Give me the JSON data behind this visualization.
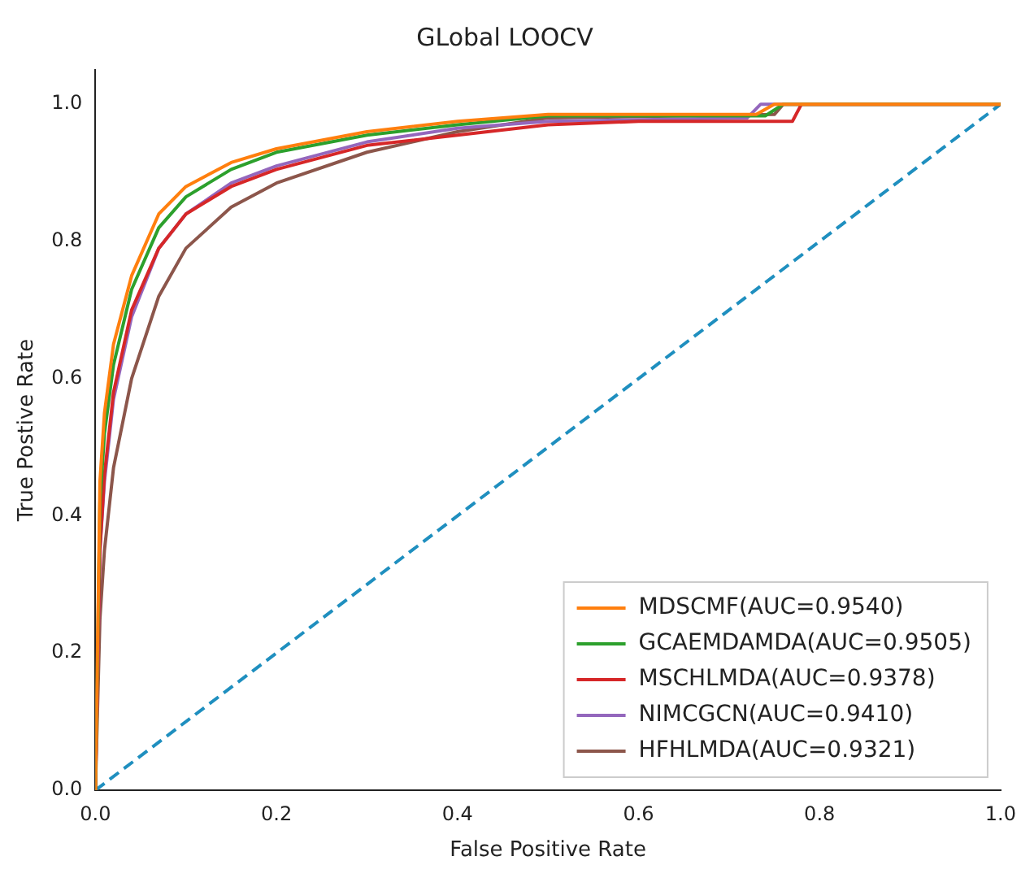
{
  "chart_data": {
    "type": "line",
    "title": "GLobal LOOCV",
    "xlabel": "False Positive Rate",
    "ylabel": "True Postive Rate",
    "xlim": [
      0,
      1
    ],
    "ylim": [
      0,
      1.05
    ],
    "xticks": [
      {
        "value": 0,
        "label": "0.0"
      },
      {
        "value": 0.2,
        "label": "0.2"
      },
      {
        "value": 0.4,
        "label": "0.4"
      },
      {
        "value": 0.6,
        "label": "0.6"
      },
      {
        "value": 0.8,
        "label": "0.8"
      },
      {
        "value": 1,
        "label": "1.0"
      }
    ],
    "yticks": [
      {
        "value": 0,
        "label": "0.0"
      },
      {
        "value": 0.2,
        "label": "0.2"
      },
      {
        "value": 0.4,
        "label": "0.4"
      },
      {
        "value": 0.6,
        "label": "0.6"
      },
      {
        "value": 0.8,
        "label": "0.8"
      },
      {
        "value": 1,
        "label": "1.0"
      }
    ],
    "grid": false,
    "legend": "bottom right",
    "marker": "none",
    "line_style": "solid",
    "series": [
      {
        "name": "MDSCMF(AUC=0.9540)",
        "color": "#ff7f0e",
        "x": [
          0,
          0.005,
          0.01,
          0.02,
          0.04,
          0.07,
          0.1,
          0.15,
          0.2,
          0.3,
          0.4,
          0.5,
          0.73,
          0.75,
          1
        ],
        "values": [
          0,
          0.45,
          0.55,
          0.65,
          0.75,
          0.84,
          0.88,
          0.915,
          0.935,
          0.96,
          0.975,
          0.985,
          0.985,
          1,
          1
        ]
      },
      {
        "name": "GCAEMDAMDA(AUC=0.9505)",
        "color": "#2ca02c",
        "x": [
          0,
          0.005,
          0.01,
          0.02,
          0.04,
          0.07,
          0.1,
          0.15,
          0.2,
          0.3,
          0.4,
          0.5,
          0.74,
          0.76,
          1
        ],
        "values": [
          0,
          0.42,
          0.52,
          0.62,
          0.73,
          0.82,
          0.865,
          0.905,
          0.93,
          0.955,
          0.97,
          0.983,
          0.983,
          1,
          1
        ]
      },
      {
        "name": "MSCHLMDA(AUC=0.9378)",
        "color": "#d62728",
        "x": [
          0,
          0.005,
          0.01,
          0.02,
          0.04,
          0.07,
          0.1,
          0.15,
          0.2,
          0.3,
          0.4,
          0.5,
          0.6,
          0.77,
          0.78,
          1
        ],
        "values": [
          0,
          0.35,
          0.46,
          0.58,
          0.7,
          0.79,
          0.84,
          0.88,
          0.905,
          0.94,
          0.955,
          0.97,
          0.975,
          0.975,
          1,
          1
        ]
      },
      {
        "name": "NIMCGCN(AUC=0.9410)",
        "color": "#9467bd",
        "x": [
          0,
          0.005,
          0.01,
          0.02,
          0.04,
          0.07,
          0.1,
          0.15,
          0.2,
          0.3,
          0.4,
          0.5,
          0.72,
          0.735,
          1
        ],
        "values": [
          0,
          0.35,
          0.45,
          0.57,
          0.69,
          0.79,
          0.84,
          0.885,
          0.91,
          0.945,
          0.965,
          0.975,
          0.98,
          1,
          1
        ]
      },
      {
        "name": "HFHLMDA(AUC=0.9321)",
        "color": "#8c564b",
        "x": [
          0,
          0.005,
          0.01,
          0.02,
          0.04,
          0.07,
          0.1,
          0.15,
          0.2,
          0.3,
          0.4,
          0.5,
          0.75,
          0.76,
          1
        ],
        "values": [
          0,
          0.25,
          0.35,
          0.47,
          0.6,
          0.72,
          0.79,
          0.85,
          0.885,
          0.93,
          0.96,
          0.98,
          0.985,
          1,
          1
        ]
      },
      {
        "color": "#1f8fbf",
        "line_style": "dashed",
        "x": [
          0,
          1
        ],
        "values": [
          0,
          1
        ]
      }
    ]
  }
}
